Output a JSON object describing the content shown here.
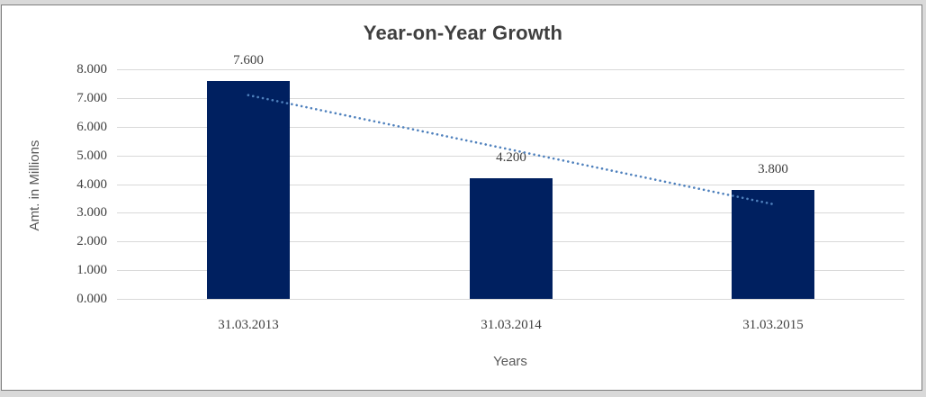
{
  "chart_data": {
    "type": "bar",
    "title": "Year-on-Year Growth",
    "xlabel": "Years",
    "ylabel": "Amt. in Millions",
    "categories": [
      "31.03.2013",
      "31.03.2014",
      "31.03.2015"
    ],
    "values": [
      7.6,
      4.2,
      3.8
    ],
    "data_labels": [
      "7.600",
      "4.200",
      "3.800"
    ],
    "ylim": [
      0,
      8
    ],
    "ytick_values": [
      0,
      1,
      2,
      3,
      4,
      5,
      6,
      7,
      8
    ],
    "ytick_labels": [
      "0.000",
      "1.000",
      "2.000",
      "3.000",
      "4.000",
      "5.000",
      "6.000",
      "7.000",
      "8.000"
    ],
    "grid": true,
    "legend": false,
    "trendline": {
      "style": "dotted",
      "start_value": 7.1,
      "end_value": 3.3
    },
    "colors": {
      "bar": "#002060",
      "trendline": "#4f81bd",
      "gridline": "#d9d9d9",
      "frame_border": "#7f7f7f",
      "outer_background": "#d9d9d9",
      "plot_background": "#ffffff",
      "title_text": "#3f3f3f",
      "tick_text": "#404040",
      "axis_title_text": "#595959"
    }
  }
}
